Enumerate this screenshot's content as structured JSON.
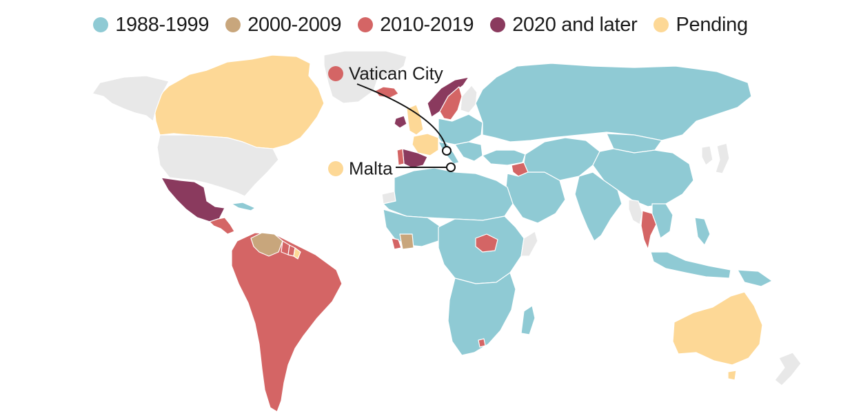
{
  "legend": [
    {
      "key": "p1",
      "label": "1988-1999",
      "color": "#8fcad4"
    },
    {
      "key": "p2",
      "label": "2000-2009",
      "color": "#c8a67c"
    },
    {
      "key": "p3",
      "label": "2010-2019",
      "color": "#d46565"
    },
    {
      "key": "p4",
      "label": "2020 and later",
      "color": "#8a3a5e"
    },
    {
      "key": "p5",
      "label": "Pending",
      "color": "#fdd896"
    }
  ],
  "no_data_color": "#e8e8e8",
  "callouts": {
    "vatican": {
      "label": "Vatican City",
      "color": "#d46565"
    },
    "malta": {
      "label": "Malta",
      "color": "#fdd896"
    }
  },
  "regions": [
    {
      "name": "Greenland",
      "status": "none"
    },
    {
      "name": "Iceland",
      "status": "p3"
    },
    {
      "name": "Canada",
      "status": "p5"
    },
    {
      "name": "United States",
      "status": "none"
    },
    {
      "name": "Alaska",
      "status": "none"
    },
    {
      "name": "Mexico",
      "status": "p4"
    },
    {
      "name": "Central America",
      "status": "p3"
    },
    {
      "name": "Cuba",
      "status": "p1"
    },
    {
      "name": "Venezuela",
      "status": "p2"
    },
    {
      "name": "Guyana",
      "status": "p3"
    },
    {
      "name": "Suriname",
      "status": "p3"
    },
    {
      "name": "French Guiana",
      "status": "p5"
    },
    {
      "name": "South America",
      "status": "p3"
    },
    {
      "name": "Ireland",
      "status": "p4"
    },
    {
      "name": "United Kingdom",
      "status": "p5"
    },
    {
      "name": "France",
      "status": "p5"
    },
    {
      "name": "Spain",
      "status": "p4"
    },
    {
      "name": "Portugal",
      "status": "p3"
    },
    {
      "name": "Norway",
      "status": "p4"
    },
    {
      "name": "Sweden",
      "status": "p3"
    },
    {
      "name": "Finland",
      "status": "none"
    },
    {
      "name": "Russia",
      "status": "p1"
    },
    {
      "name": "Central Europe",
      "status": "p1"
    },
    {
      "name": "Balkans",
      "status": "p1"
    },
    {
      "name": "Italy",
      "status": "p1"
    },
    {
      "name": "Turkey",
      "status": "p1"
    },
    {
      "name": "Syria",
      "status": "p3"
    },
    {
      "name": "Middle East",
      "status": "p1"
    },
    {
      "name": "Central Asia",
      "status": "p1"
    },
    {
      "name": "China",
      "status": "p1"
    },
    {
      "name": "India",
      "status": "p1"
    },
    {
      "name": "Mongolia",
      "status": "p1"
    },
    {
      "name": "Korea",
      "status": "none"
    },
    {
      "name": "Japan",
      "status": "none"
    },
    {
      "name": "Myanmar",
      "status": "none"
    },
    {
      "name": "Thailand",
      "status": "p3"
    },
    {
      "name": "Indochina",
      "status": "p1"
    },
    {
      "name": "Indonesia",
      "status": "p1"
    },
    {
      "name": "Philippines",
      "status": "p1"
    },
    {
      "name": "Papua New Guinea",
      "status": "p1"
    },
    {
      "name": "North Africa",
      "status": "p1"
    },
    {
      "name": "West Africa",
      "status": "p1"
    },
    {
      "name": "Liberia",
      "status": "p3"
    },
    {
      "name": "Ivory Coast",
      "status": "p2"
    },
    {
      "name": "Central Africa",
      "status": "p1"
    },
    {
      "name": "South Sudan",
      "status": "p3"
    },
    {
      "name": "Somalia",
      "status": "none"
    },
    {
      "name": "Southern Africa",
      "status": "p1"
    },
    {
      "name": "Lesotho",
      "status": "p3"
    },
    {
      "name": "Madagascar",
      "status": "p1"
    },
    {
      "name": "Australia",
      "status": "p5"
    },
    {
      "name": "Tasmania",
      "status": "p5"
    },
    {
      "name": "New Zealand",
      "status": "none"
    },
    {
      "name": "Western Sahara",
      "status": "none"
    }
  ]
}
